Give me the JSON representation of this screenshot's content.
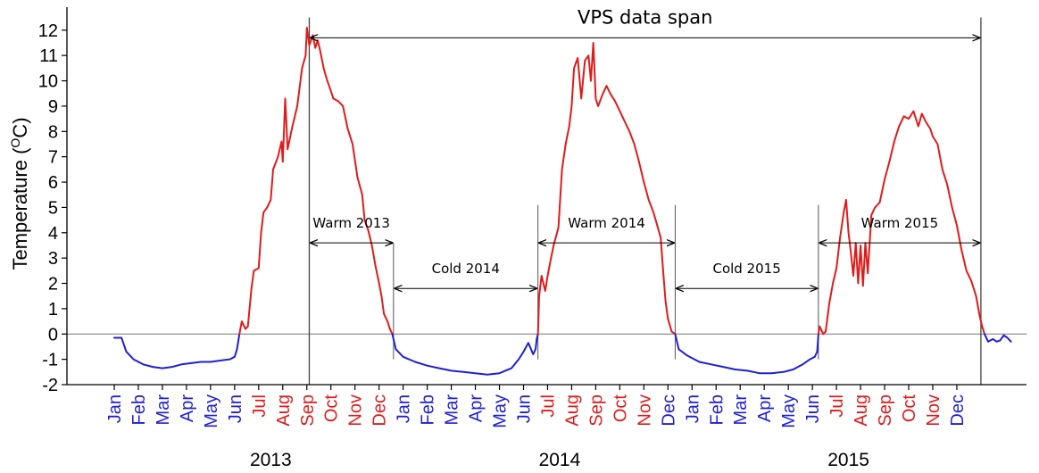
{
  "chart_data": {
    "type": "line",
    "title": "",
    "xlabel": "",
    "ylabel": "Temperature (",
    "ylabel_sup": "O",
    "ylabel_tail": "C)",
    "ylim": [
      -2,
      12.5
    ],
    "yticks": [
      "-2",
      "-1",
      "0",
      "1",
      "2",
      "3",
      "4",
      "5",
      "6",
      "7",
      "8",
      "9",
      "10",
      "11",
      "12"
    ],
    "grid": false,
    "months": [
      {
        "label": "Jan",
        "color": "#1f1fd6"
      },
      {
        "label": "Feb",
        "color": "#1f1fd6"
      },
      {
        "label": "Mar",
        "color": "#1f1fd6"
      },
      {
        "label": "Apr",
        "color": "#1f1fd6"
      },
      {
        "label": "May",
        "color": "#1f1fd6"
      },
      {
        "label": "Jun",
        "color": "#1f1fd6"
      },
      {
        "label": "Jul",
        "color": "#e11b1b"
      },
      {
        "label": "Aug",
        "color": "#e11b1b"
      },
      {
        "label": "Sep",
        "color": "#e11b1b"
      },
      {
        "label": "Oct",
        "color": "#e11b1b"
      },
      {
        "label": "Nov",
        "color": "#e11b1b"
      },
      {
        "label": "Dec",
        "color": "#e11b1b"
      },
      {
        "label": "Jan",
        "color": "#1f1fd6"
      },
      {
        "label": "Feb",
        "color": "#1f1fd6"
      },
      {
        "label": "Mar",
        "color": "#1f1fd6"
      },
      {
        "label": "Apr",
        "color": "#1f1fd6"
      },
      {
        "label": "May",
        "color": "#1f1fd6"
      },
      {
        "label": "Jun",
        "color": "#1f1fd6"
      },
      {
        "label": "Jul",
        "color": "#e11b1b"
      },
      {
        "label": "Aug",
        "color": "#e11b1b"
      },
      {
        "label": "Sep",
        "color": "#e11b1b"
      },
      {
        "label": "Oct",
        "color": "#e11b1b"
      },
      {
        "label": "Nov",
        "color": "#e11b1b"
      },
      {
        "label": "Dec",
        "color": "#1f1fd6"
      },
      {
        "label": "Jan",
        "color": "#1f1fd6"
      },
      {
        "label": "Feb",
        "color": "#1f1fd6"
      },
      {
        "label": "Mar",
        "color": "#1f1fd6"
      },
      {
        "label": "Apr",
        "color": "#1f1fd6"
      },
      {
        "label": "May",
        "color": "#1f1fd6"
      },
      {
        "label": "Jun",
        "color": "#1f1fd6"
      },
      {
        "label": "Jul",
        "color": "#e11b1b"
      },
      {
        "label": "Aug",
        "color": "#e11b1b"
      },
      {
        "label": "Sep",
        "color": "#e11b1b"
      },
      {
        "label": "Oct",
        "color": "#e11b1b"
      },
      {
        "label": "Nov",
        "color": "#e11b1b"
      },
      {
        "label": "Dec",
        "color": "#1f1fd6"
      }
    ],
    "years": [
      {
        "label": "2013",
        "month_index": 6.5
      },
      {
        "label": "2014",
        "month_index": 18.5
      },
      {
        "label": "2015",
        "month_index": 30.5
      }
    ],
    "x_unit": "month index (0 = Jan 2013)",
    "series_colors": {
      "cold": "#1f1fd6",
      "warm": "#e11b1b"
    },
    "series": [
      {
        "color": "#1f1fd6",
        "points": [
          [
            0,
            -0.15
          ],
          [
            0.3,
            -0.15
          ],
          [
            0.5,
            -0.7
          ],
          [
            0.8,
            -1.0
          ],
          [
            1.2,
            -1.2
          ],
          [
            1.6,
            -1.3
          ],
          [
            2.0,
            -1.35
          ],
          [
            2.4,
            -1.3
          ],
          [
            2.8,
            -1.2
          ],
          [
            3.2,
            -1.15
          ],
          [
            3.6,
            -1.1
          ],
          [
            4.0,
            -1.1
          ],
          [
            4.4,
            -1.05
          ],
          [
            4.8,
            -1.0
          ],
          [
            5.0,
            -0.9
          ],
          [
            5.1,
            -0.6
          ],
          [
            5.2,
            0.0
          ]
        ]
      },
      {
        "color": "#e11b1b",
        "points": [
          [
            5.2,
            0.0
          ],
          [
            5.3,
            0.5
          ],
          [
            5.45,
            0.2
          ],
          [
            5.55,
            0.3
          ],
          [
            5.7,
            1.8
          ],
          [
            5.8,
            2.5
          ],
          [
            6.0,
            2.6
          ],
          [
            6.1,
            4.0
          ],
          [
            6.2,
            4.8
          ],
          [
            6.35,
            5.0
          ],
          [
            6.5,
            5.3
          ],
          [
            6.6,
            6.5
          ],
          [
            6.8,
            7.0
          ],
          [
            6.95,
            7.6
          ],
          [
            7.0,
            6.8
          ],
          [
            7.1,
            9.3
          ],
          [
            7.2,
            7.3
          ],
          [
            7.4,
            8.2
          ],
          [
            7.6,
            9.0
          ],
          [
            7.8,
            10.5
          ],
          [
            7.95,
            11.0
          ],
          [
            8.0,
            12.1
          ],
          [
            8.1,
            11.4
          ],
          [
            8.25,
            11.8
          ],
          [
            8.35,
            11.3
          ],
          [
            8.45,
            11.6
          ],
          [
            8.55,
            11.2
          ],
          [
            8.7,
            10.5
          ],
          [
            8.85,
            10.0
          ],
          [
            9.0,
            9.6
          ],
          [
            9.1,
            9.3
          ],
          [
            9.3,
            9.2
          ],
          [
            9.5,
            9.0
          ],
          [
            9.7,
            8.1
          ],
          [
            9.9,
            7.5
          ],
          [
            10.1,
            6.2
          ],
          [
            10.3,
            5.5
          ],
          [
            10.4,
            4.5
          ],
          [
            10.55,
            4.1
          ],
          [
            10.7,
            3.5
          ],
          [
            10.85,
            2.7
          ],
          [
            11.0,
            2.0
          ],
          [
            11.1,
            1.5
          ],
          [
            11.2,
            0.8
          ],
          [
            11.35,
            0.5
          ],
          [
            11.45,
            0.2
          ],
          [
            11.55,
            0.0
          ]
        ]
      },
      {
        "color": "#1f1fd6",
        "points": [
          [
            11.55,
            0.0
          ],
          [
            11.7,
            -0.6
          ],
          [
            12.0,
            -0.9
          ],
          [
            12.5,
            -1.1
          ],
          [
            13.0,
            -1.25
          ],
          [
            13.5,
            -1.35
          ],
          [
            14.0,
            -1.45
          ],
          [
            14.5,
            -1.5
          ],
          [
            15.0,
            -1.55
          ],
          [
            15.5,
            -1.6
          ],
          [
            16.0,
            -1.55
          ],
          [
            16.5,
            -1.35
          ],
          [
            16.8,
            -1.0
          ],
          [
            17.0,
            -0.7
          ],
          [
            17.2,
            -0.35
          ],
          [
            17.4,
            -0.8
          ],
          [
            17.5,
            -0.6
          ],
          [
            17.55,
            -0.2
          ],
          [
            17.6,
            0.0
          ]
        ]
      },
      {
        "color": "#e11b1b",
        "points": [
          [
            17.6,
            0.0
          ],
          [
            17.65,
            1.5
          ],
          [
            17.75,
            2.3
          ],
          [
            17.9,
            1.7
          ],
          [
            18.0,
            2.3
          ],
          [
            18.1,
            2.8
          ],
          [
            18.25,
            3.5
          ],
          [
            18.45,
            4.2
          ],
          [
            18.6,
            6.5
          ],
          [
            18.75,
            7.5
          ],
          [
            18.9,
            8.2
          ],
          [
            19.0,
            9.0
          ],
          [
            19.1,
            10.5
          ],
          [
            19.25,
            10.9
          ],
          [
            19.4,
            9.3
          ],
          [
            19.55,
            10.8
          ],
          [
            19.7,
            11.0
          ],
          [
            19.8,
            10.0
          ],
          [
            19.9,
            11.5
          ],
          [
            20.0,
            9.3
          ],
          [
            20.1,
            9.0
          ],
          [
            20.3,
            9.5
          ],
          [
            20.45,
            9.8
          ],
          [
            20.6,
            9.5
          ],
          [
            20.8,
            9.2
          ],
          [
            21.0,
            8.8
          ],
          [
            21.2,
            8.4
          ],
          [
            21.4,
            8.0
          ],
          [
            21.6,
            7.5
          ],
          [
            21.8,
            6.8
          ],
          [
            22.0,
            6.0
          ],
          [
            22.2,
            5.3
          ],
          [
            22.4,
            4.8
          ],
          [
            22.55,
            4.3
          ],
          [
            22.7,
            3.8
          ],
          [
            22.8,
            2.5
          ],
          [
            22.9,
            1.3
          ],
          [
            23.0,
            0.6
          ],
          [
            23.15,
            0.1
          ],
          [
            23.3,
            0.0
          ]
        ]
      },
      {
        "color": "#1f1fd6",
        "points": [
          [
            23.3,
            0.0
          ],
          [
            23.45,
            -0.6
          ],
          [
            23.8,
            -0.85
          ],
          [
            24.3,
            -1.1
          ],
          [
            24.8,
            -1.2
          ],
          [
            25.3,
            -1.3
          ],
          [
            25.8,
            -1.4
          ],
          [
            26.3,
            -1.45
          ],
          [
            26.8,
            -1.55
          ],
          [
            27.3,
            -1.55
          ],
          [
            27.8,
            -1.5
          ],
          [
            28.2,
            -1.4
          ],
          [
            28.6,
            -1.2
          ],
          [
            28.9,
            -1.0
          ],
          [
            29.1,
            -0.9
          ],
          [
            29.2,
            -0.7
          ],
          [
            29.25,
            0.0
          ]
        ]
      },
      {
        "color": "#e11b1b",
        "points": [
          [
            29.25,
            0.0
          ],
          [
            29.3,
            0.3
          ],
          [
            29.45,
            0.0
          ],
          [
            29.55,
            0.1
          ],
          [
            29.7,
            1.2
          ],
          [
            29.85,
            2.0
          ],
          [
            30.0,
            2.6
          ],
          [
            30.15,
            3.8
          ],
          [
            30.3,
            4.8
          ],
          [
            30.4,
            5.3
          ],
          [
            30.5,
            4.0
          ],
          [
            30.6,
            3.2
          ],
          [
            30.7,
            2.3
          ],
          [
            30.8,
            3.6
          ],
          [
            30.9,
            2.0
          ],
          [
            31.0,
            3.5
          ],
          [
            31.1,
            1.9
          ],
          [
            31.2,
            3.6
          ],
          [
            31.3,
            2.4
          ],
          [
            31.45,
            4.7
          ],
          [
            31.6,
            5.0
          ],
          [
            31.8,
            5.2
          ],
          [
            32.0,
            6.1
          ],
          [
            32.2,
            6.8
          ],
          [
            32.4,
            7.6
          ],
          [
            32.6,
            8.2
          ],
          [
            32.8,
            8.6
          ],
          [
            33.0,
            8.5
          ],
          [
            33.2,
            8.8
          ],
          [
            33.4,
            8.2
          ],
          [
            33.55,
            8.7
          ],
          [
            33.7,
            8.4
          ],
          [
            33.9,
            8.1
          ],
          [
            34.0,
            7.8
          ],
          [
            34.2,
            7.5
          ],
          [
            34.4,
            6.5
          ],
          [
            34.6,
            5.9
          ],
          [
            34.8,
            5.0
          ],
          [
            35.0,
            4.3
          ],
          [
            35.2,
            3.3
          ],
          [
            35.4,
            2.5
          ],
          [
            35.6,
            2.1
          ],
          [
            35.8,
            1.5
          ],
          [
            35.95,
            0.7
          ],
          [
            36.05,
            0.3
          ],
          [
            36.15,
            0.0
          ]
        ]
      },
      {
        "color": "#1f1fd6",
        "points": [
          [
            36.15,
            0.0
          ],
          [
            36.3,
            -0.3
          ],
          [
            36.5,
            -0.2
          ],
          [
            36.65,
            -0.3
          ],
          [
            36.8,
            -0.25
          ],
          [
            36.95,
            -0.05
          ],
          [
            37.1,
            -0.15
          ],
          [
            37.25,
            -0.3
          ]
        ]
      }
    ],
    "vertical_lines": [
      {
        "x": 8.1,
        "y_top": 12.5,
        "y_bottom": -2,
        "major": true
      },
      {
        "x": 36.0,
        "y_top": 12.5,
        "y_bottom": -2,
        "major": true
      },
      {
        "x": 11.6,
        "y_top": 3.6,
        "y_bottom": -1.0,
        "major": false
      },
      {
        "x": 17.6,
        "y_top": 5.1,
        "y_bottom": -1.0,
        "major": false
      },
      {
        "x": 23.3,
        "y_top": 5.1,
        "y_bottom": -1.0,
        "major": false
      },
      {
        "x": 29.25,
        "y_top": 5.1,
        "y_bottom": -1.0,
        "major": false
      }
    ],
    "annotations": [
      {
        "id": "vps-data-span",
        "text": "VPS data span",
        "x1": 8.1,
        "x2": 36.0,
        "y": 11.7,
        "label_y": 12.25,
        "size": "large"
      },
      {
        "id": "warm-2013",
        "text": "Warm 2013",
        "x1": 8.1,
        "x2": 11.6,
        "y": 3.6,
        "label_y": 4.2,
        "size": "small"
      },
      {
        "id": "cold-2014",
        "text": "Cold 2014",
        "x1": 11.6,
        "x2": 17.6,
        "y": 1.8,
        "label_y": 2.4,
        "size": "small"
      },
      {
        "id": "warm-2014",
        "text": "Warm 2014",
        "x1": 17.6,
        "x2": 23.3,
        "y": 3.6,
        "label_y": 4.2,
        "size": "small"
      },
      {
        "id": "cold-2015",
        "text": "Cold 2015",
        "x1": 23.3,
        "x2": 29.25,
        "y": 1.8,
        "label_y": 2.4,
        "size": "small"
      },
      {
        "id": "warm-2015",
        "text": "Warm 2015",
        "x1": 29.25,
        "x2": 36.0,
        "y": 3.6,
        "label_y": 4.2,
        "size": "small"
      }
    ]
  }
}
